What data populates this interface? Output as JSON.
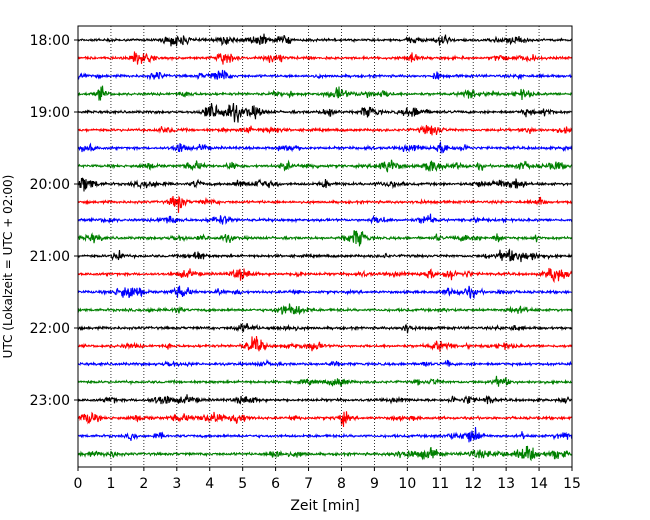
{
  "chart_data": {
    "type": "line",
    "title": "",
    "xlabel": "Zeit  [min]",
    "ylabel": "UTC (Lokalzeit = UTC + 02:00)",
    "xlim": [
      0,
      15
    ],
    "x_ticks": [
      "0",
      "1",
      "2",
      "3",
      "4",
      "5",
      "6",
      "7",
      "8",
      "9",
      "10",
      "11",
      "12",
      "13",
      "14",
      "15"
    ],
    "y_ticks": [
      "18:00",
      "19:00",
      "20:00",
      "21:00",
      "22:00",
      "23:00"
    ],
    "grid": "vertical-dotted",
    "trace_interval_minutes": 15,
    "color_cycle": [
      "#000000",
      "#ff0000",
      "#0000ff",
      "#008000"
    ],
    "traces": [
      "18:00",
      "18:15",
      "18:30",
      "18:45",
      "19:00",
      "19:15",
      "19:30",
      "19:45",
      "20:00",
      "20:15",
      "20:30",
      "20:45",
      "21:00",
      "21:15",
      "21:30",
      "21:45",
      "22:00",
      "22:15",
      "22:30",
      "22:45",
      "23:00",
      "23:15",
      "23:30",
      "23:45"
    ]
  }
}
